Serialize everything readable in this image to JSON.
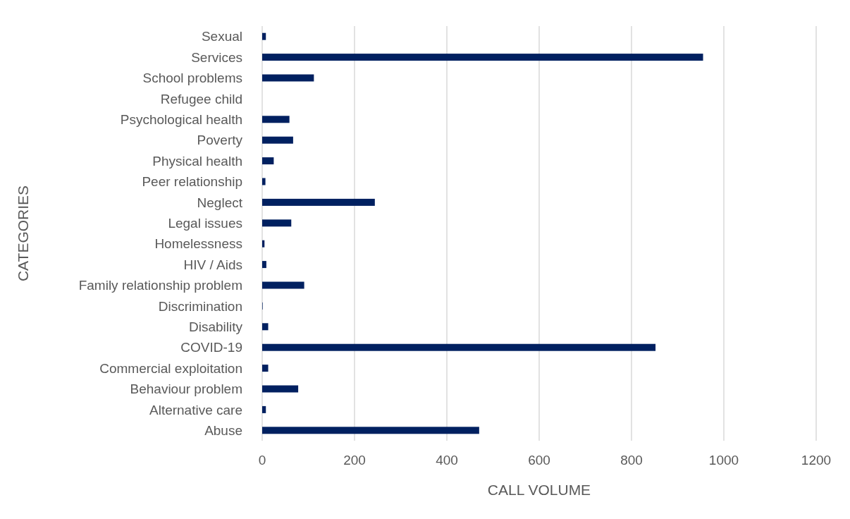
{
  "chart_data": {
    "type": "bar",
    "orientation": "horizontal",
    "xlabel": "CALL VOLUME",
    "ylabel": "CATEGORIES",
    "categories": [
      "Sexual",
      "Services",
      "School problems",
      "Refugee child",
      "Psychological health",
      "Poverty",
      "Physical health",
      "Peer relationship",
      "Neglect",
      "Legal issues",
      "Homelessness",
      "HIV / Aids",
      "Family relationship problem",
      "Discrimination",
      "Disability",
      "COVID-19",
      "Commercial exploitation",
      "Behaviour problem",
      "Alternative care",
      "Abuse"
    ],
    "values": [
      8,
      955,
      112,
      0,
      59,
      67,
      25,
      7,
      244,
      63,
      5,
      9,
      91,
      1,
      13,
      852,
      13,
      78,
      8,
      470
    ],
    "color": "#002060",
    "xlim": [
      0,
      1200
    ],
    "xticks": [
      0,
      200,
      400,
      600,
      800,
      1000,
      1200
    ],
    "grid": "x"
  }
}
